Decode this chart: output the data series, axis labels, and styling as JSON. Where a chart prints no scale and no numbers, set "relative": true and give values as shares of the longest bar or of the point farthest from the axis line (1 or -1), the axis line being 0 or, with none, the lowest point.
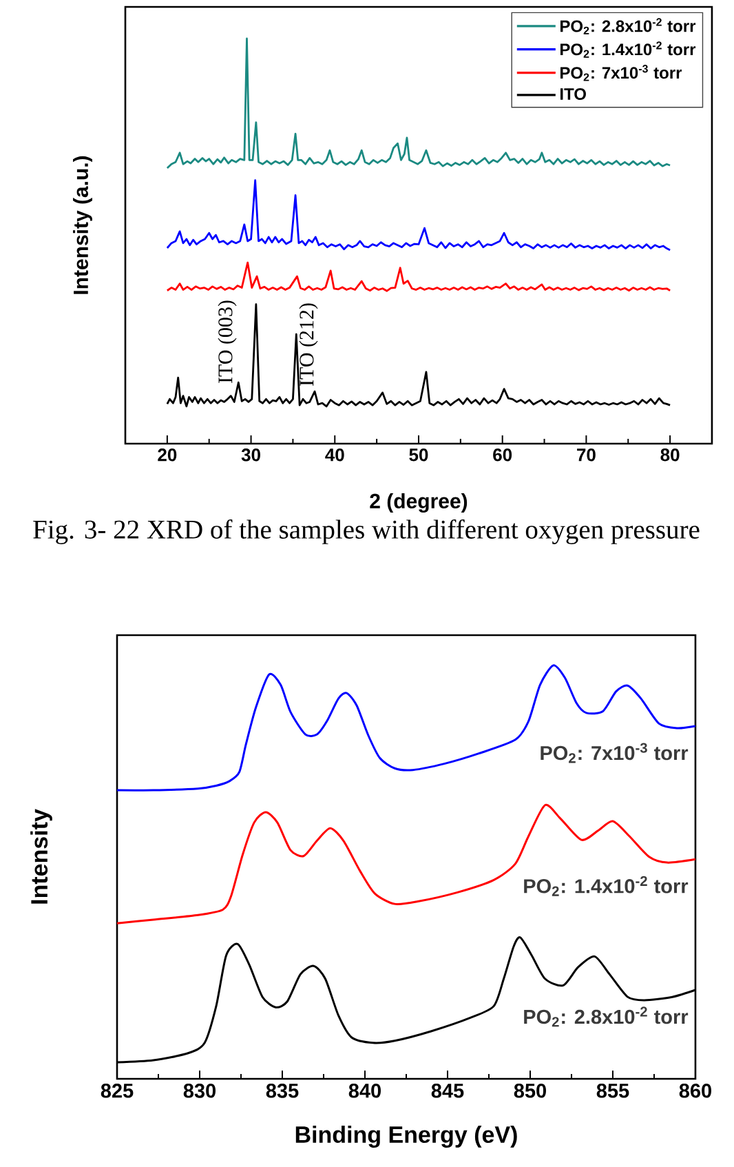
{
  "chart_data": [
    {
      "type": "line",
      "relative": true,
      "xlabel": "2 (degree)",
      "ylabel": "Intensity (a.u.)",
      "legend": "top right",
      "xlim": [
        15,
        85
      ],
      "xticks": [
        20,
        {
          "value": 25,
          "label": null
        },
        30,
        {
          "value": 35,
          "label": null
        },
        40,
        {
          "value": 45,
          "label": null
        },
        50,
        {
          "value": 55,
          "label": null
        },
        60,
        {
          "value": 65,
          "label": null
        },
        70,
        {
          "value": 75,
          "label": null
        },
        80
      ],
      "annotations": [
        "ITO (003)",
        "ITO (212)",
        "Fig. 3- 22 XRD of the samples with different oxygen pressure"
      ],
      "series": [
        {
          "name": "PO$_{2}$: 2.8x10$^{-2}$ torr",
          "color": "#1b8a82",
          "x": [
            20.0,
            20.5,
            21.0,
            21.5,
            21.9,
            22.4,
            22.8,
            23.3,
            23.7,
            24.2,
            24.6,
            25.0,
            25.5,
            26.0,
            26.4,
            26.8,
            27.3,
            27.7,
            28.2,
            28.7,
            29.2,
            29.5,
            29.8,
            30.2,
            30.6,
            30.9,
            31.4,
            31.9,
            32.4,
            32.9,
            33.4,
            33.9,
            34.4,
            34.9,
            35.3,
            35.6,
            36.0,
            36.5,
            37.0,
            37.5,
            38.0,
            38.5,
            39.0,
            39.4,
            39.8,
            40.3,
            40.8,
            41.3,
            41.8,
            42.3,
            42.8,
            43.2,
            43.6,
            44.1,
            44.6,
            45.1,
            45.6,
            46.1,
            46.6,
            47.0,
            47.5,
            47.9,
            48.3,
            48.6,
            48.9,
            49.4,
            49.9,
            50.4,
            50.9,
            51.4,
            51.9,
            52.4,
            52.9,
            53.4,
            53.9,
            54.4,
            54.9,
            55.4,
            55.9,
            56.4,
            56.9,
            57.4,
            57.9,
            58.4,
            58.9,
            59.4,
            59.9,
            60.4,
            60.9,
            61.4,
            61.9,
            62.4,
            62.9,
            63.4,
            63.9,
            64.4,
            64.7,
            65.1,
            65.6,
            66.1,
            66.6,
            67.1,
            67.6,
            68.1,
            68.6,
            69.1,
            69.6,
            70.1,
            70.6,
            71.1,
            71.6,
            72.1,
            72.6,
            73.1,
            73.6,
            74.1,
            74.6,
            75.1,
            75.6,
            76.1,
            76.6,
            77.1,
            77.6,
            78.1,
            78.6,
            79.1,
            79.6,
            80.0
          ],
          "values": [
            0.68,
            0.69,
            0.695,
            0.718,
            0.69,
            0.697,
            0.692,
            0.703,
            0.695,
            0.705,
            0.697,
            0.703,
            0.69,
            0.702,
            0.694,
            0.706,
            0.692,
            0.7,
            0.695,
            0.703,
            0.7,
            1.0,
            0.7,
            0.7,
            0.793,
            0.695,
            0.69,
            0.698,
            0.69,
            0.697,
            0.692,
            0.697,
            0.688,
            0.7,
            0.765,
            0.7,
            0.7,
            0.69,
            0.705,
            0.692,
            0.695,
            0.69,
            0.7,
            0.724,
            0.695,
            0.69,
            0.697,
            0.688,
            0.695,
            0.69,
            0.702,
            0.724,
            0.695,
            0.69,
            0.7,
            0.693,
            0.7,
            0.695,
            0.705,
            0.73,
            0.741,
            0.7,
            0.715,
            0.755,
            0.7,
            0.695,
            0.69,
            0.698,
            0.724,
            0.693,
            0.69,
            0.695,
            0.685,
            0.692,
            0.686,
            0.693,
            0.688,
            0.695,
            0.69,
            0.7,
            0.69,
            0.697,
            0.705,
            0.692,
            0.7,
            0.695,
            0.705,
            0.718,
            0.7,
            0.703,
            0.693,
            0.703,
            0.69,
            0.7,
            0.695,
            0.702,
            0.718,
            0.695,
            0.7,
            0.69,
            0.703,
            0.692,
            0.7,
            0.695,
            0.702,
            0.69,
            0.698,
            0.692,
            0.7,
            0.69,
            0.697,
            0.688,
            0.695,
            0.69,
            0.698,
            0.688,
            0.695,
            0.688,
            0.697,
            0.688,
            0.695,
            0.69,
            0.698,
            0.687,
            0.693,
            0.685,
            0.69,
            0.687
          ]
        },
        {
          "name": "PO$_{2}$: 1.4x10$^{-2}$ torr",
          "color": "#0000ff",
          "x": [
            20.0,
            20.5,
            21.0,
            21.5,
            21.9,
            22.3,
            22.7,
            23.1,
            23.5,
            24.0,
            24.5,
            25.0,
            25.4,
            25.8,
            26.2,
            26.7,
            27.2,
            27.7,
            28.2,
            28.7,
            29.2,
            29.6,
            30.0,
            30.5,
            30.9,
            31.3,
            31.7,
            32.1,
            32.5,
            32.9,
            33.3,
            33.7,
            34.2,
            34.8,
            35.3,
            35.7,
            36.1,
            36.5,
            36.9,
            37.3,
            37.7,
            38.1,
            38.6,
            39.1,
            39.6,
            40.1,
            40.6,
            41.1,
            41.6,
            42.1,
            42.6,
            43.0,
            43.5,
            44.0,
            44.5,
            45.0,
            45.5,
            46.0,
            46.5,
            47.0,
            47.5,
            48.0,
            48.5,
            49.0,
            49.5,
            50.0,
            50.7,
            51.2,
            51.7,
            52.2,
            52.7,
            53.2,
            53.7,
            54.2,
            54.7,
            55.2,
            55.7,
            56.2,
            56.7,
            57.2,
            57.7,
            58.2,
            58.7,
            59.2,
            59.7,
            60.2,
            60.7,
            61.2,
            61.7,
            62.2,
            62.7,
            63.2,
            63.7,
            64.2,
            64.7,
            65.2,
            65.7,
            66.2,
            66.7,
            67.2,
            67.7,
            68.2,
            68.7,
            69.2,
            69.7,
            70.2,
            70.7,
            71.2,
            71.7,
            72.2,
            72.7,
            73.2,
            73.7,
            74.2,
            74.7,
            75.2,
            75.7,
            76.2,
            76.7,
            77.2,
            77.7,
            78.2,
            78.7,
            79.2,
            79.6,
            80.0
          ],
          "values": [
            0.483,
            0.495,
            0.5,
            0.524,
            0.495,
            0.505,
            0.49,
            0.503,
            0.492,
            0.5,
            0.505,
            0.52,
            0.505,
            0.515,
            0.497,
            0.5,
            0.492,
            0.5,
            0.495,
            0.5,
            0.541,
            0.5,
            0.505,
            0.65,
            0.5,
            0.505,
            0.495,
            0.51,
            0.497,
            0.51,
            0.497,
            0.505,
            0.493,
            0.5,
            0.613,
            0.495,
            0.5,
            0.49,
            0.503,
            0.497,
            0.51,
            0.49,
            0.495,
            0.485,
            0.492,
            0.487,
            0.492,
            0.48,
            0.49,
            0.485,
            0.49,
            0.5,
            0.487,
            0.485,
            0.492,
            0.488,
            0.497,
            0.49,
            0.487,
            0.495,
            0.49,
            0.485,
            0.495,
            0.488,
            0.493,
            0.492,
            0.532,
            0.495,
            0.49,
            0.485,
            0.497,
            0.483,
            0.495,
            0.487,
            0.492,
            0.485,
            0.497,
            0.487,
            0.492,
            0.5,
            0.485,
            0.492,
            0.49,
            0.495,
            0.5,
            0.52,
            0.497,
            0.49,
            0.497,
            0.485,
            0.492,
            0.488,
            0.482,
            0.492,
            0.485,
            0.49,
            0.484,
            0.49,
            0.484,
            0.49,
            0.485,
            0.494,
            0.484,
            0.49,
            0.485,
            0.488,
            0.482,
            0.488,
            0.484,
            0.49,
            0.482,
            0.488,
            0.484,
            0.49,
            0.482,
            0.49,
            0.484,
            0.49,
            0.483,
            0.492,
            0.482,
            0.49,
            0.485,
            0.488,
            0.482,
            0.478
          ]
        },
        {
          "name": "PO$_{2}$: 7x10$^{-3}$ torr",
          "color": "#ff0000",
          "x": [
            20.0,
            20.5,
            21.0,
            21.5,
            21.9,
            22.4,
            22.9,
            23.4,
            23.9,
            24.4,
            24.9,
            25.4,
            25.9,
            26.4,
            26.9,
            27.4,
            27.9,
            28.4,
            28.9,
            29.6,
            30.1,
            30.7,
            31.1,
            31.6,
            32.1,
            32.6,
            33.1,
            33.6,
            34.1,
            34.6,
            35.5,
            35.9,
            36.4,
            36.9,
            37.4,
            37.9,
            38.4,
            38.9,
            39.5,
            39.9,
            40.4,
            40.9,
            41.4,
            41.9,
            42.4,
            43.2,
            43.7,
            44.2,
            44.7,
            45.2,
            45.7,
            46.2,
            46.7,
            47.2,
            47.8,
            48.2,
            48.7,
            49.2,
            49.7,
            50.2,
            50.7,
            51.2,
            51.7,
            52.2,
            52.7,
            53.2,
            53.7,
            54.2,
            54.7,
            55.2,
            55.7,
            56.2,
            56.7,
            57.2,
            57.7,
            58.2,
            58.7,
            59.2,
            59.7,
            60.4,
            60.9,
            61.4,
            61.9,
            62.4,
            62.9,
            63.4,
            63.9,
            64.7,
            65.1,
            65.6,
            66.1,
            66.6,
            67.1,
            67.6,
            68.1,
            68.6,
            69.1,
            69.6,
            70.1,
            70.6,
            71.1,
            71.6,
            72.1,
            72.6,
            73.1,
            73.6,
            74.1,
            74.6,
            75.1,
            75.6,
            76.1,
            76.6,
            77.1,
            77.6,
            78.1,
            78.6,
            79.1,
            79.6,
            80.0
          ],
          "values": [
            0.378,
            0.385,
            0.38,
            0.395,
            0.38,
            0.387,
            0.38,
            0.388,
            0.383,
            0.385,
            0.38,
            0.388,
            0.382,
            0.387,
            0.38,
            0.385,
            0.381,
            0.39,
            0.385,
            0.447,
            0.385,
            0.413,
            0.383,
            0.387,
            0.38,
            0.385,
            0.38,
            0.386,
            0.38,
            0.385,
            0.413,
            0.384,
            0.38,
            0.388,
            0.38,
            0.384,
            0.38,
            0.386,
            0.427,
            0.383,
            0.381,
            0.386,
            0.38,
            0.384,
            0.38,
            0.401,
            0.383,
            0.378,
            0.385,
            0.38,
            0.383,
            0.377,
            0.384,
            0.385,
            0.434,
            0.395,
            0.402,
            0.383,
            0.38,
            0.385,
            0.38,
            0.384,
            0.381,
            0.385,
            0.38,
            0.384,
            0.38,
            0.385,
            0.38,
            0.386,
            0.381,
            0.386,
            0.38,
            0.385,
            0.383,
            0.388,
            0.382,
            0.387,
            0.385,
            0.395,
            0.383,
            0.388,
            0.38,
            0.385,
            0.38,
            0.386,
            0.381,
            0.393,
            0.38,
            0.386,
            0.38,
            0.385,
            0.38,
            0.384,
            0.38,
            0.385,
            0.379,
            0.384,
            0.382,
            0.388,
            0.38,
            0.384,
            0.379,
            0.384,
            0.38,
            0.385,
            0.38,
            0.384,
            0.378,
            0.385,
            0.38,
            0.384,
            0.38,
            0.386,
            0.38,
            0.384,
            0.382,
            0.383,
            0.378
          ]
        },
        {
          "name": "ITO",
          "color": "#000000",
          "x": [
            20.0,
            20.3,
            20.7,
            21.0,
            21.3,
            21.6,
            21.9,
            22.3,
            22.6,
            23.0,
            23.3,
            23.7,
            24.0,
            24.4,
            24.8,
            25.2,
            25.6,
            26.0,
            26.4,
            26.8,
            27.2,
            27.6,
            28.0,
            28.5,
            28.9,
            29.3,
            29.7,
            30.1,
            30.6,
            31.0,
            31.4,
            31.8,
            32.2,
            32.6,
            33.0,
            33.4,
            33.8,
            34.2,
            34.6,
            35.0,
            35.4,
            35.8,
            36.2,
            36.6,
            37.0,
            37.6,
            38.0,
            38.5,
            39.0,
            39.5,
            40.0,
            40.5,
            41.0,
            41.5,
            42.0,
            42.5,
            43.0,
            43.5,
            44.0,
            44.5,
            45.0,
            45.7,
            46.2,
            46.7,
            47.2,
            47.7,
            48.2,
            48.7,
            49.2,
            49.7,
            50.2,
            50.9,
            51.3,
            51.8,
            52.3,
            52.8,
            53.3,
            53.8,
            54.3,
            54.8,
            55.3,
            55.8,
            56.3,
            56.8,
            57.3,
            57.8,
            58.3,
            58.8,
            59.3,
            59.7,
            60.2,
            60.7,
            61.2,
            61.7,
            62.2,
            62.7,
            63.2,
            63.7,
            64.2,
            64.7,
            65.2,
            65.7,
            66.2,
            66.7,
            67.2,
            67.7,
            68.2,
            68.7,
            69.2,
            69.7,
            70.2,
            70.7,
            71.2,
            71.7,
            72.2,
            72.7,
            73.2,
            73.7,
            74.2,
            74.7,
            75.2,
            75.7,
            76.2,
            76.7,
            77.2,
            77.7,
            78.2,
            78.7,
            79.2,
            79.6,
            80.0
          ],
          "values": [
            0.098,
            0.11,
            0.1,
            0.115,
            0.163,
            0.1,
            0.118,
            0.092,
            0.115,
            0.103,
            0.115,
            0.1,
            0.112,
            0.1,
            0.11,
            0.1,
            0.108,
            0.1,
            0.107,
            0.103,
            0.11,
            0.118,
            0.103,
            0.151,
            0.105,
            0.11,
            0.103,
            0.11,
            0.344,
            0.105,
            0.1,
            0.11,
            0.1,
            0.107,
            0.105,
            0.115,
            0.1,
            0.11,
            0.1,
            0.11,
            0.27,
            0.095,
            0.11,
            0.1,
            0.103,
            0.129,
            0.097,
            0.1,
            0.092,
            0.108,
            0.1,
            0.095,
            0.105,
            0.097,
            0.104,
            0.095,
            0.103,
            0.097,
            0.103,
            0.095,
            0.105,
            0.126,
            0.098,
            0.105,
            0.095,
            0.103,
            0.096,
            0.105,
            0.095,
            0.1,
            0.105,
            0.177,
            0.1,
            0.095,
            0.103,
            0.097,
            0.105,
            0.095,
            0.103,
            0.11,
            0.098,
            0.112,
            0.1,
            0.108,
            0.097,
            0.112,
            0.1,
            0.107,
            0.1,
            0.11,
            0.135,
            0.112,
            0.11,
            0.103,
            0.108,
            0.1,
            0.108,
            0.097,
            0.103,
            0.108,
            0.097,
            0.105,
            0.097,
            0.105,
            0.1,
            0.097,
            0.105,
            0.098,
            0.102,
            0.097,
            0.105,
            0.097,
            0.102,
            0.097,
            0.1,
            0.096,
            0.1,
            0.097,
            0.102,
            0.097,
            0.1,
            0.105,
            0.097,
            0.108,
            0.1,
            0.11,
            0.098,
            0.112,
            0.1,
            0.098,
            0.095
          ]
        }
      ]
    },
    {
      "type": "line",
      "relative": true,
      "xlabel": "Binding Energy (eV)",
      "ylabel": "Intensity",
      "xlim": [
        825,
        860
      ],
      "xticks": [
        825,
        {
          "value": 827.5,
          "label": null
        },
        830,
        {
          "value": 832.5,
          "label": null
        },
        835,
        {
          "value": 837.5,
          "label": null
        },
        840,
        {
          "value": 842.5,
          "label": null
        },
        845,
        {
          "value": 847.5,
          "label": null
        },
        850,
        {
          "value": 852.5,
          "label": null
        },
        855,
        {
          "value": 857.5,
          "label": null
        },
        860
      ],
      "series": [
        {
          "name": "PO$_{2}$: 7x10$^{-3}$ torr",
          "color": "#0000ff",
          "x": [
            825,
            827.2,
            829.9,
            831.0,
            831.8,
            832.4,
            832.8,
            833.4,
            834.2,
            834.9,
            835.5,
            836.4,
            837.1,
            837.7,
            838.4,
            838.9,
            839.5,
            840.2,
            840.9,
            841.8,
            842.9,
            844.8,
            846.9,
            849.1,
            849.9,
            850.6,
            851.4,
            852.1,
            852.8,
            853.4,
            854.4,
            855.2,
            855.9,
            856.7,
            857.8,
            858.9,
            860
          ],
          "values": [
            0.698,
            0.698,
            0.702,
            0.709,
            0.72,
            0.742,
            0.809,
            0.898,
            0.978,
            0.953,
            0.887,
            0.833,
            0.833,
            0.865,
            0.92,
            0.933,
            0.903,
            0.831,
            0.776,
            0.751,
            0.747,
            0.762,
            0.787,
            0.82,
            0.865,
            0.953,
            1.0,
            0.97,
            0.909,
            0.885,
            0.889,
            0.937,
            0.951,
            0.92,
            0.859,
            0.848,
            0.853
          ]
        },
        {
          "name": "PO$_{2}$: 1.4x10$^{-2}$ torr",
          "color": "#ff0000",
          "x": [
            825,
            827.2,
            829.9,
            831.4,
            831.9,
            832.6,
            833.3,
            834.0,
            834.7,
            835.5,
            836.3,
            837.1,
            837.9,
            838.7,
            839.7,
            840.6,
            841.8,
            843.2,
            845.6,
            847.8,
            849.1,
            849.9,
            850.9,
            851.8,
            853.1,
            854.1,
            855.0,
            856.0,
            857.2,
            858.3,
            860
          ],
          "values": [
            0.376,
            0.385,
            0.396,
            0.409,
            0.442,
            0.542,
            0.62,
            0.645,
            0.62,
            0.553,
            0.539,
            0.576,
            0.606,
            0.576,
            0.503,
            0.448,
            0.423,
            0.429,
            0.451,
            0.481,
            0.52,
            0.587,
            0.662,
            0.631,
            0.578,
            0.6,
            0.623,
            0.587,
            0.537,
            0.523,
            0.531
          ]
        },
        {
          "name": "PO$_{2}$: 2.8x10$^{-2}$ torr",
          "color": "#000000",
          "x": [
            825,
            827.2,
            829.3,
            830.3,
            831.0,
            831.6,
            832.3,
            833.0,
            833.8,
            834.6,
            835.3,
            836.1,
            836.9,
            837.6,
            838.4,
            839.2,
            840.5,
            841.8,
            844.0,
            846.4,
            847.8,
            848.4,
            849.0,
            849.4,
            850.1,
            850.9,
            852.0,
            852.9,
            853.9,
            854.8,
            855.9,
            856.9,
            858.6,
            860
          ],
          "values": [
            0.04,
            0.045,
            0.062,
            0.087,
            0.176,
            0.298,
            0.326,
            0.276,
            0.198,
            0.173,
            0.187,
            0.253,
            0.273,
            0.242,
            0.153,
            0.1,
            0.087,
            0.092,
            0.115,
            0.148,
            0.176,
            0.242,
            0.32,
            0.342,
            0.298,
            0.242,
            0.226,
            0.27,
            0.296,
            0.253,
            0.198,
            0.19,
            0.198,
            0.215
          ]
        }
      ]
    }
  ]
}
